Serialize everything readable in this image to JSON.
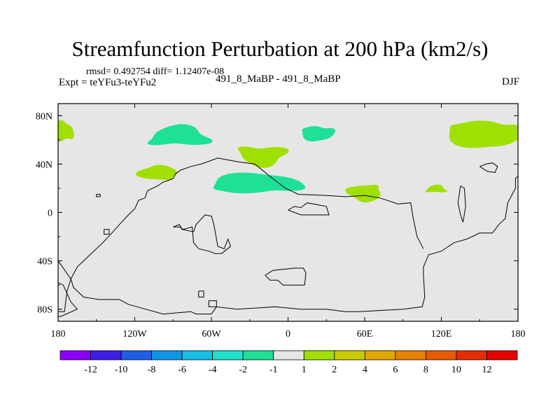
{
  "chart_data": {
    "type": "heatmap",
    "title": "Streamfunction Perturbation at 200 hPa (km2/s)",
    "stats_line": "rmsd= 0.492754  diff= 1.12407e-08",
    "experiment": "Expt = teYFu3-teYFu2",
    "models": "491_8_MaBP - 491_8_MaBP",
    "season": "DJF",
    "xlim": [
      -180,
      180
    ],
    "ylim": [
      -90,
      90
    ],
    "x_ticks": [
      {
        "value": -180,
        "label": "180"
      },
      {
        "value": -120,
        "label": "120W"
      },
      {
        "value": -60,
        "label": "60W"
      },
      {
        "value": 0,
        "label": "0"
      },
      {
        "value": 60,
        "label": "60E"
      },
      {
        "value": 120,
        "label": "120E"
      },
      {
        "value": 180,
        "label": "180"
      }
    ],
    "y_ticks": [
      {
        "value": 80,
        "label": "80N"
      },
      {
        "value": 40,
        "label": "40N"
      },
      {
        "value": 0,
        "label": "0"
      },
      {
        "value": -40,
        "label": "40S"
      },
      {
        "value": -80,
        "label": "80S"
      }
    ],
    "background_color": "#e6e6e6",
    "colorbar": {
      "labels": [
        "-12",
        "-10",
        "-8",
        "-6",
        "-4",
        "-2",
        "-1",
        "1",
        "2",
        "4",
        "6",
        "8",
        "10",
        "12"
      ],
      "colors": [
        "#8c00ff",
        "#3d1ee6",
        "#1f5ee6",
        "#0f96e6",
        "#1abfe6",
        "#21e0cc",
        "#1ee096",
        "#e6e6e6",
        "#a0e000",
        "#c8cc00",
        "#e0a800",
        "#e68000",
        "#e65a00",
        "#e62d00",
        "#e60000"
      ]
    },
    "regions": [
      {
        "sign": "negative",
        "range": "-2 to -1",
        "color": "#1ee096",
        "center": [
          -85,
          62
        ],
        "radius": [
          24,
          8
        ]
      },
      {
        "sign": "negative",
        "range": "-2 to -1",
        "color": "#1ee096",
        "center": [
          23,
          66
        ],
        "radius": [
          13,
          6
        ]
      },
      {
        "sign": "negative",
        "range": "-2 to -1",
        "color": "#1ee096",
        "center": [
          -25,
          23
        ],
        "radius": [
          36,
          8
        ]
      },
      {
        "sign": "positive",
        "range": "1 to 2",
        "color": "#a0e000",
        "center": [
          -20,
          48
        ],
        "radius": [
          19,
          8
        ]
      },
      {
        "sign": "positive",
        "range": "1 to 2",
        "color": "#a0e000",
        "center": [
          -102,
          32
        ],
        "radius": [
          15,
          6
        ]
      },
      {
        "sign": "positive",
        "range": "1 to 2",
        "color": "#a0e000",
        "center": [
          60,
          17
        ],
        "radius": [
          13,
          7
        ]
      },
      {
        "sign": "positive",
        "range": "1 to 2",
        "color": "#a0e000",
        "center": [
          116,
          19
        ],
        "radius": [
          8,
          3
        ]
      },
      {
        "sign": "positive",
        "range": "1 to 2",
        "color": "#a0e000",
        "center": [
          154,
          66
        ],
        "radius": [
          30,
          11
        ]
      },
      {
        "sign": "positive",
        "range": "1 to 2",
        "color": "#a0e000",
        "center": [
          -176,
          66
        ],
        "radius": [
          8,
          8
        ]
      }
    ],
    "coastlines": [
      [
        [
          -180,
          -82
        ],
        [
          -175,
          -82
        ],
        [
          -173,
          -65
        ],
        [
          -170,
          -55
        ],
        [
          -165,
          -45
        ],
        [
          -155,
          -35
        ],
        [
          -145,
          -25
        ],
        [
          -137,
          -16
        ],
        [
          -132,
          -10
        ],
        [
          -125,
          -2
        ],
        [
          -120,
          3
        ],
        [
          -117,
          10
        ],
        [
          -112,
          12
        ],
        [
          -110,
          18
        ],
        [
          -102,
          22
        ],
        [
          -98,
          25
        ],
        [
          -95,
          26
        ],
        [
          -90,
          28
        ],
        [
          -88,
          32
        ],
        [
          -84,
          35
        ],
        [
          -76,
          38
        ],
        [
          -68,
          40
        ],
        [
          -55,
          45
        ],
        [
          -40,
          42
        ],
        [
          -26,
          40
        ],
        [
          -12,
          28
        ],
        [
          -2,
          20
        ],
        [
          8,
          15
        ],
        [
          30,
          14
        ],
        [
          45,
          13
        ],
        [
          60,
          14
        ],
        [
          72,
          12
        ],
        [
          86,
          7
        ],
        [
          96,
          8
        ],
        [
          98,
          -5
        ],
        [
          101,
          -20
        ],
        [
          106,
          -30
        ]
      ],
      [
        [
          -180,
          -40
        ],
        [
          -170,
          -55
        ],
        [
          -168,
          -62
        ],
        [
          -160,
          -70
        ],
        [
          -148,
          -72
        ],
        [
          -132,
          -72
        ],
        [
          -125,
          -76
        ],
        [
          -118,
          -78
        ],
        [
          -98,
          -84
        ],
        [
          -76,
          -82
        ],
        [
          -72,
          -84
        ],
        [
          -60,
          -84
        ],
        [
          -56,
          -78
        ],
        [
          -40,
          -80
        ],
        [
          -10,
          -78
        ],
        [
          10,
          -80
        ],
        [
          30,
          -80
        ],
        [
          45,
          -82
        ],
        [
          55,
          -82
        ],
        [
          90,
          -80
        ],
        [
          105,
          -78
        ],
        [
          107,
          -70
        ],
        [
          106,
          -52
        ],
        [
          106,
          -45
        ],
        [
          110,
          -35
        ],
        [
          120,
          -32
        ],
        [
          130,
          -25
        ],
        [
          140,
          -22
        ],
        [
          150,
          -17
        ],
        [
          160,
          -17
        ],
        [
          165,
          -10
        ],
        [
          170,
          -5
        ],
        [
          172,
          8
        ],
        [
          178,
          20
        ],
        [
          178,
          28
        ],
        [
          180,
          30
        ]
      ],
      [
        [
          -180,
          -58
        ],
        [
          -176,
          -60
        ],
        [
          -170,
          -74
        ],
        [
          -165,
          -80
        ],
        [
          -178,
          -86
        ],
        [
          -180,
          -86
        ]
      ],
      [
        [
          -90,
          -12
        ],
        [
          -85,
          -10
        ],
        [
          -83,
          -14
        ],
        [
          -74,
          -16
        ],
        [
          -72,
          -10
        ],
        [
          -65,
          -2
        ],
        [
          -60,
          -3
        ],
        [
          -58,
          -10
        ],
        [
          -55,
          -28
        ],
        [
          -50,
          -30
        ],
        [
          -47,
          -22
        ],
        [
          -45,
          -28
        ],
        [
          -52,
          -34
        ],
        [
          -57,
          -34
        ],
        [
          -62,
          -32
        ],
        [
          -70,
          -30
        ],
        [
          -74,
          -25
        ],
        [
          -75,
          -12
        ],
        [
          -82,
          -14
        ],
        [
          -85,
          -12
        ],
        [
          -90,
          -12
        ]
      ],
      [
        [
          -18,
          -52
        ],
        [
          -12,
          -48
        ],
        [
          5,
          -46
        ],
        [
          12,
          -46
        ],
        [
          14,
          -50
        ],
        [
          13,
          -60
        ],
        [
          -4,
          -60
        ],
        [
          -8,
          -56
        ],
        [
          -14,
          -56
        ],
        [
          -18,
          -52
        ]
      ],
      [
        [
          0,
          2
        ],
        [
          5,
          5
        ],
        [
          10,
          4
        ],
        [
          15,
          8
        ],
        [
          25,
          6
        ],
        [
          30,
          5
        ],
        [
          32,
          -2
        ],
        [
          25,
          -2
        ],
        [
          10,
          -2
        ],
        [
          0,
          2
        ]
      ],
      [
        [
          150,
          38
        ],
        [
          155,
          40
        ],
        [
          160,
          41
        ],
        [
          164,
          38
        ],
        [
          162,
          33
        ],
        [
          156,
          34
        ],
        [
          150,
          38
        ]
      ],
      [
        [
          135,
          22
        ],
        [
          138,
          20
        ],
        [
          139,
          5
        ],
        [
          137,
          -8
        ],
        [
          135,
          -2
        ],
        [
          133,
          8
        ],
        [
          135,
          22
        ]
      ],
      [
        [
          -150,
          15
        ],
        [
          -147,
          15
        ],
        [
          -147,
          13
        ],
        [
          -150,
          13
        ],
        [
          -150,
          15
        ]
      ],
      [
        [
          -144,
          -14
        ],
        [
          -140,
          -14
        ],
        [
          -140,
          -18
        ],
        [
          -144,
          -18
        ],
        [
          -144,
          -14
        ]
      ],
      [
        [
          -70,
          -65
        ],
        [
          -66,
          -65
        ],
        [
          -66,
          -70
        ],
        [
          -70,
          -70
        ],
        [
          -70,
          -65
        ]
      ],
      [
        [
          -62,
          -73
        ],
        [
          -56,
          -73
        ],
        [
          -56,
          -78
        ],
        [
          -62,
          -78
        ],
        [
          -62,
          -73
        ]
      ]
    ]
  }
}
